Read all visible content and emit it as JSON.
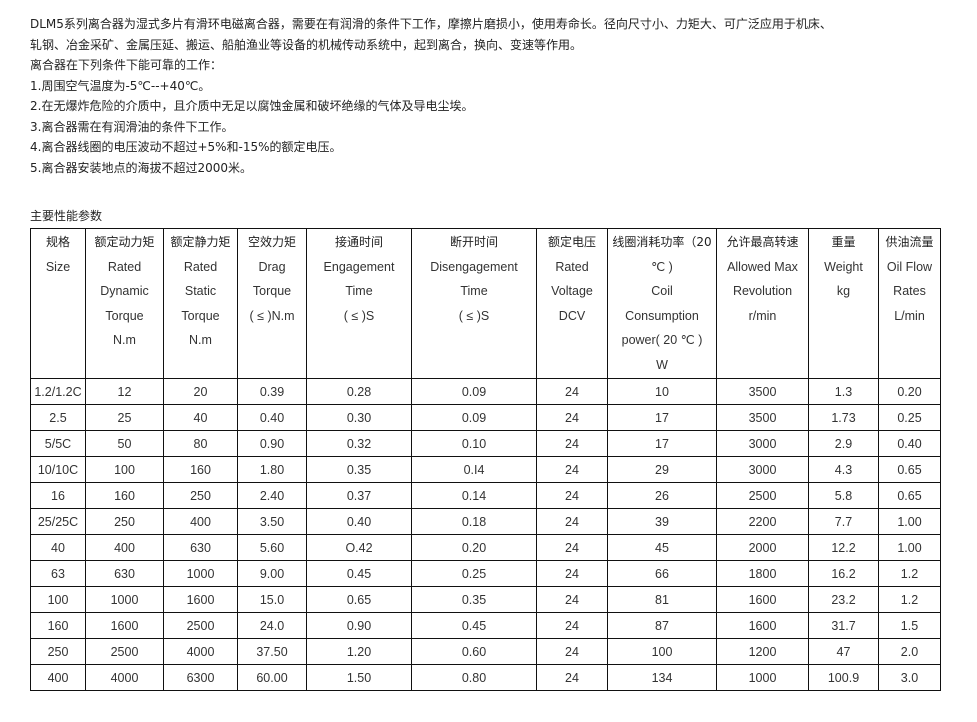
{
  "intro": {
    "lines": [
      "DLM5系列离合器为湿式多片有滑环电磁离合器，需要在有润滑的条件下工作，摩擦片磨损小，使用寿命长。径向尺寸小、力矩大、可广泛应用于机床、",
      "轧钢、冶金采矿、金属压延、搬运、船舶渔业等设备的机械传动系统中，起到离合，换向、变速等作用。",
      "离合器在下列条件下能可靠的工作：",
      "1.周围空气温度为-5℃--+40℃。",
      "2.在无爆炸危险的介质中，且介质中无足以腐蚀金属和破坏绝缘的气体及导电尘埃。",
      "3.离合器需在有润滑油的条件下工作。",
      "4.离合器线圈的电压波动不超过+5%和-15%的额定电压。",
      "5.离合器安装地点的海拔不超过2000米。"
    ]
  },
  "section_title": "主要性能参数",
  "table": {
    "headers": [
      {
        "zh": "规格",
        "en": [
          "Size"
        ]
      },
      {
        "zh": "额定动力矩",
        "en": [
          "Rated",
          "Dynamic",
          "Torque",
          "N.m"
        ]
      },
      {
        "zh": "额定静力矩",
        "en": [
          "Rated",
          "Static",
          "Torque",
          "N.m"
        ]
      },
      {
        "zh": "空效力矩",
        "en": [
          "Drag",
          "Torque",
          "( ≤ )N.m"
        ]
      },
      {
        "zh": "接通时间",
        "en": [
          "Engagement",
          "Time",
          "( ≤ )S"
        ]
      },
      {
        "zh": "断开时间",
        "en": [
          "Disengagement",
          "Time",
          "( ≤ )S"
        ]
      },
      {
        "zh": "额定电压",
        "en": [
          "Rated",
          "Voltage",
          "DCV"
        ]
      },
      {
        "zh": "线圈消耗功率（20",
        "en": [
          "℃ )",
          "Coil",
          "Consumption",
          "power( 20 ℃ )",
          "W"
        ]
      },
      {
        "zh": "允许最高转速",
        "en": [
          "Allowed Max",
          "Revolution",
          "r/min"
        ]
      },
      {
        "zh": "重量",
        "en": [
          "Weight",
          "kg"
        ]
      },
      {
        "zh": "供油流量",
        "en": [
          "Oil Flow",
          "Rates",
          "L/min"
        ]
      }
    ],
    "rows": [
      [
        "1.2/1.2C",
        "12",
        "20",
        "0.39",
        "0.28",
        "0.09",
        "24",
        "10",
        "3500",
        "1.3",
        "0.20"
      ],
      [
        "2.5",
        "25",
        "40",
        "0.40",
        "0.30",
        "0.09",
        "24",
        "17",
        "3500",
        "1.73",
        "0.25"
      ],
      [
        "5/5C",
        "50",
        "80",
        "0.90",
        "0.32",
        "0.10",
        "24",
        "17",
        "3000",
        "2.9",
        "0.40"
      ],
      [
        "10/10C",
        "100",
        "160",
        "1.80",
        "0.35",
        "0.I4",
        "24",
        "29",
        "3000",
        "4.3",
        "0.65"
      ],
      [
        "16",
        "160",
        "250",
        "2.40",
        "0.37",
        "0.14",
        "24",
        "26",
        "2500",
        "5.8",
        "0.65"
      ],
      [
        "25/25C",
        "250",
        "400",
        "3.50",
        "0.40",
        "0.18",
        "24",
        "39",
        "2200",
        "7.7",
        "1.00"
      ],
      [
        "40",
        "400",
        "630",
        "5.60",
        "O.42",
        "0.20",
        "24",
        "45",
        "2000",
        "12.2",
        "1.00"
      ],
      [
        "63",
        "630",
        "1000",
        "9.00",
        "0.45",
        "0.25",
        "24",
        "66",
        "1800",
        "16.2",
        "1.2"
      ],
      [
        "100",
        "1000",
        "1600",
        "15.0",
        "0.65",
        "0.35",
        "24",
        "81",
        "1600",
        "23.2",
        "1.2"
      ],
      [
        "160",
        "1600",
        "2500",
        "24.0",
        "0.90",
        "0.45",
        "24",
        "87",
        "1600",
        "31.7",
        "1.5"
      ],
      [
        "250",
        "2500",
        "4000",
        "37.50",
        "1.20",
        "0.60",
        "24",
        "100",
        "1200",
        "47",
        "2.0"
      ],
      [
        "400",
        "4000",
        "6300",
        "60.00",
        "1.50",
        "0.80",
        "24",
        "134",
        "1000",
        "100.9",
        "3.0"
      ]
    ]
  }
}
